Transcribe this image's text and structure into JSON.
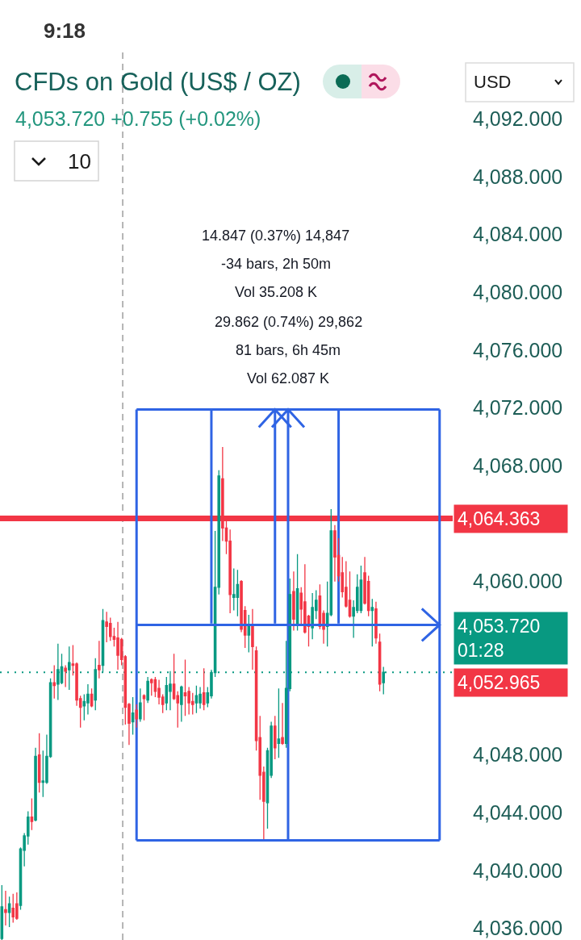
{
  "chart_data": {
    "type": "candlestick",
    "title": "CFDs on Gold (US$ / OZ)",
    "subtitle": "4,053.720 +0.755 (+0.02%)",
    "categories": [
      null,
      null,
      null,
      null,
      null,
      null,
      null,
      null,
      null,
      null,
      null,
      null,
      null,
      null,
      null,
      null,
      null,
      null,
      null,
      null,
      null,
      null,
      null,
      null,
      null,
      null,
      null,
      null,
      null,
      null,
      null,
      null,
      null,
      null,
      null,
      null,
      null,
      null,
      null,
      null,
      null,
      null,
      null,
      null,
      null,
      null,
      null,
      null,
      null,
      null,
      null,
      null,
      null,
      null,
      null,
      null,
      null,
      null,
      null,
      null,
      null,
      null,
      null,
      null,
      null,
      null,
      null,
      null,
      null,
      null,
      null,
      null,
      null,
      null,
      null,
      null,
      null,
      null,
      null,
      null,
      null,
      null,
      null,
      null,
      null,
      null,
      null,
      null,
      null,
      null,
      null,
      null,
      null,
      null,
      null,
      null,
      null,
      null,
      null,
      null,
      null,
      null,
      null,
      null,
      null,
      null,
      null,
      null,
      null,
      null,
      null,
      null,
      null,
      null,
      null,
      null,
      null,
      null,
      null,
      null,
      null
    ],
    "ohlc": [
      [
        4035.3,
        4039.0,
        4035.2,
        4037.5
      ],
      [
        4037.3,
        4038.6,
        4036.2,
        4037.1
      ],
      [
        4037.1,
        4038.2,
        4036.1,
        4037.7
      ],
      [
        4037.4,
        4038.4,
        4036.4,
        4036.8
      ],
      [
        4037.7,
        4038.5,
        4036.6,
        4036.7
      ],
      [
        4037.6,
        4041.6,
        4037.3,
        4041.5
      ],
      [
        4041.4,
        4042.6,
        4040.3,
        4042.4
      ],
      [
        4042.4,
        4044.1,
        4041.8,
        4043.7
      ],
      [
        4043.7,
        4045.0,
        4042.8,
        4043.4
      ],
      [
        4043.5,
        4048.5,
        4043.4,
        4047.9
      ],
      [
        4048.0,
        4049.5,
        4045.4,
        4046.1
      ],
      [
        4046.1,
        4048.3,
        4045.1,
        4046.2
      ],
      [
        4046.1,
        4049.4,
        4046.0,
        4047.9
      ],
      [
        4047.9,
        4053.3,
        4047.8,
        4053.0
      ],
      [
        4053.0,
        4054.2,
        4051.9,
        4052.8
      ],
      [
        4052.9,
        4055.7,
        4051.8,
        4053.9
      ],
      [
        4053.0,
        4055.0,
        4052.9,
        4054.1
      ],
      [
        4054.0,
        4054.2,
        4052.7,
        4053.8
      ],
      [
        4053.9,
        4055.5,
        4052.5,
        4054.4
      ],
      [
        4054.3,
        4055.6,
        4053.5,
        4054.2
      ],
      [
        4054.3,
        4054.4,
        4051.4,
        4051.8
      ],
      [
        4051.9,
        4052.1,
        4049.9,
        4051.3
      ],
      [
        4051.4,
        4052.2,
        4050.4,
        4051.7
      ],
      [
        4051.6,
        4052.9,
        4050.8,
        4052.2
      ],
      [
        4052.2,
        4052.6,
        4051.3,
        4051.4
      ],
      [
        4051.8,
        4054.7,
        4051.1,
        4053.9
      ],
      [
        4054.2,
        4055.9,
        4053.3,
        4053.9
      ],
      [
        4054.2,
        4058.1,
        4053.7,
        4057.3
      ],
      [
        4057.2,
        4057.9,
        4055.8,
        4056.9
      ],
      [
        4057.1,
        4057.5,
        4055.9,
        4056.2
      ],
      [
        4056.2,
        4056.8,
        4055.5,
        4056.0
      ],
      [
        4056.1,
        4057.2,
        4053.9,
        4054.9
      ],
      [
        4056.0,
        4056.1,
        4054.2,
        4054.6
      ],
      [
        4054.8,
        4054.9,
        4050.1,
        4051.3
      ],
      [
        4051.5,
        4051.6,
        4048.7,
        4050.2
      ],
      [
        4050.3,
        4052.0,
        4049.4,
        4050.9
      ],
      [
        4051.1,
        4051.5,
        4049.9,
        4050.5
      ],
      [
        4050.5,
        4052.6,
        4050.3,
        4051.6
      ],
      [
        4052.1,
        4052.2,
        4050.4,
        4051.9
      ],
      [
        4051.8,
        4053.4,
        4051.6,
        4053.1
      ],
      [
        4053.2,
        4053.3,
        4052.1,
        4053.0
      ],
      [
        4053.2,
        4053.4,
        4052.0,
        4052.4
      ],
      [
        4052.6,
        4053.2,
        4051.5,
        4052.0
      ],
      [
        4052.0,
        4052.2,
        4050.9,
        4051.5
      ],
      [
        4051.6,
        4053.4,
        4051.1,
        4052.8
      ],
      [
        4052.4,
        4053.8,
        4051.1,
        4052.9
      ],
      [
        4052.9,
        4055.0,
        4051.8,
        4051.9
      ],
      [
        4052.1,
        4052.4,
        4049.9,
        4051.6
      ],
      [
        4051.5,
        4052.8,
        4050.3,
        4052.7
      ],
      [
        4052.3,
        4054.6,
        4050.7,
        4052.1
      ],
      [
        4052.4,
        4052.7,
        4050.8,
        4051.6
      ],
      [
        4051.7,
        4052.3,
        4050.8,
        4051.5
      ],
      [
        4051.6,
        4052.8,
        4050.9,
        4052.1
      ],
      [
        4051.6,
        4052.7,
        4051.2,
        4052.2
      ],
      [
        4052.3,
        4054.0,
        4051.1,
        4051.5
      ],
      [
        4051.6,
        4052.7,
        4051.3,
        4052.3
      ],
      [
        4052.1,
        4053.9,
        4051.9,
        4053.7
      ],
      [
        4053.7,
        4063.5,
        4053.4,
        4059.6
      ],
      [
        4059.6,
        4067.7,
        4059.1,
        4067.3
      ],
      [
        4067.1,
        4069.3,
        4062.8,
        4063.7
      ],
      [
        4063.7,
        4064.3,
        4061.9,
        4062.8
      ],
      [
        4062.8,
        4063.6,
        4057.8,
        4059.1
      ],
      [
        4058.9,
        4060.9,
        4058.0,
        4059.1
      ],
      [
        4058.9,
        4060.8,
        4057.6,
        4059.8
      ],
      [
        4060.0,
        4060.1,
        4056.5,
        4056.7
      ],
      [
        4058.0,
        4058.3,
        4055.4,
        4056.3
      ],
      [
        4056.3,
        4057.7,
        4055.1,
        4057.0
      ],
      [
        4057.0,
        4058.1,
        4053.9,
        4055.5
      ],
      [
        4055.2,
        4055.5,
        4048.3,
        4049.0
      ],
      [
        4049.2,
        4050.7,
        4044.9,
        4046.6
      ],
      [
        4046.8,
        4047.2,
        4042.1,
        4044.8
      ],
      [
        4044.7,
        4048.5,
        4042.9,
        4048.3
      ],
      [
        4046.6,
        4050.3,
        4046.4,
        4050.0
      ],
      [
        4050.0,
        4050.7,
        4047.7,
        4048.5
      ],
      [
        4048.8,
        4052.6,
        4047.8,
        4049.1
      ],
      [
        4049.2,
        4051.6,
        4048.7,
        4048.8
      ],
      [
        4048.8,
        4055.9,
        4048.5,
        4052.6
      ],
      [
        4052.6,
        4060.2,
        4052.4,
        4059.1
      ],
      [
        4059.3,
        4060.7,
        4056.6,
        4057.4
      ],
      [
        4057.0,
        4061.9,
        4056.6,
        4059.5
      ],
      [
        4059.2,
        4059.6,
        4057.0,
        4058.1
      ],
      [
        4058.6,
        4061.2,
        4056.4,
        4056.5
      ],
      [
        4057.6,
        4057.7,
        4055.5,
        4056.9
      ],
      [
        4056.8,
        4059.2,
        4056.0,
        4058.2
      ],
      [
        4058.0,
        4059.4,
        4057.4,
        4058.7
      ],
      [
        4059.0,
        4059.8,
        4056.7,
        4056.9
      ],
      [
        4057.8,
        4058.0,
        4055.7,
        4056.7
      ],
      [
        4056.9,
        4060.0,
        4055.5,
        4057.8
      ],
      [
        4057.7,
        4065.0,
        4057.6,
        4063.5
      ],
      [
        4063.5,
        4063.9,
        4060.0,
        4061.7
      ],
      [
        4061.8,
        4063.0,
        4060.0,
        4060.4
      ],
      [
        4060.6,
        4061.7,
        4058.9,
        4059.3
      ],
      [
        4059.6,
        4061.4,
        4058.2,
        4058.3
      ],
      [
        4058.7,
        4060.7,
        4057.5,
        4057.6
      ],
      [
        4057.6,
        4058.7,
        4056.1,
        4058.2
      ],
      [
        4058.0,
        4060.5,
        4057.8,
        4059.6
      ],
      [
        4058.0,
        4061.1,
        4057.8,
        4060.1
      ],
      [
        4060.6,
        4061.7,
        4058.4,
        4058.5
      ],
      [
        4060.0,
        4060.4,
        4057.6,
        4058.0
      ],
      [
        4058.0,
        4058.8,
        4055.5,
        4058.2
      ],
      [
        4058.1,
        4058.6,
        4055.7,
        4056.1
      ],
      [
        4055.8,
        4056.4,
        4052.4,
        4052.9
      ],
      [
        4053.0,
        4054.1,
        4052.2,
        4053.72
      ],
      null,
      null,
      null,
      null,
      null,
      null,
      null,
      null,
      null,
      null,
      null,
      null,
      null,
      null,
      null,
      null,
      null,
      null
    ],
    "colors": [
      "#089981",
      "#f23645",
      "#089981",
      "#f23645",
      "#f23645",
      "#089981",
      "#089981",
      "#089981",
      "#f23645",
      "#089981",
      "#f23645",
      "#089981",
      "#089981",
      "#089981",
      "#f23645",
      "#089981",
      "#089981",
      "#f23645",
      "#089981",
      "#f23645",
      "#f23645",
      "#f23645",
      "#089981",
      "#089981",
      "#f23645",
      "#089981",
      "#f23645",
      "#089981",
      "#f23645",
      "#f23645",
      "#f23645",
      "#f23645",
      "#f23645",
      "#f23645",
      "#f23645",
      "#089981",
      "#f23645",
      "#089981",
      "#f23645",
      "#089981",
      "#f23645",
      "#f23645",
      "#f23645",
      "#f23645",
      "#089981",
      "#089981",
      "#f23645",
      "#f23645",
      "#089981",
      "#f23645",
      "#f23645",
      "#f23645",
      "#089981",
      "#089981",
      "#f23645",
      "#089981",
      "#089981",
      "#089981",
      "#089981",
      "#f23645",
      "#f23645",
      "#f23645",
      "#089981",
      "#089981",
      "#f23645",
      "#f23645",
      "#089981",
      "#f23645",
      "#f23645",
      "#f23645",
      "#f23645",
      "#089981",
      "#089981",
      "#f23645",
      "#089981",
      "#f23645",
      "#089981",
      "#089981",
      "#f23645",
      "#089981",
      "#f23645",
      "#f23645",
      "#f23645",
      "#089981",
      "#089981",
      "#f23645",
      "#f23645",
      "#089981",
      "#089981",
      "#f23645",
      "#f23645",
      "#f23645",
      "#f23645",
      "#f23645",
      "#089981",
      "#089981",
      "#089981",
      "#f23645",
      "#f23645",
      "#089981",
      "#f23645",
      "#f23645",
      "#089981",
      null,
      null,
      null,
      null,
      null,
      null,
      null,
      null,
      null,
      null,
      null,
      null,
      null,
      null,
      null,
      null,
      null,
      null
    ],
    "ylim": [
      4035.2,
      4096.6
    ],
    "yticks": [
      {
        "value": 4036,
        "label": "4,036.000"
      },
      {
        "value": 4040,
        "label": "4,040.000"
      },
      {
        "value": 4044,
        "label": "4,044.000"
      },
      {
        "value": 4048,
        "label": "4,048.000"
      },
      {
        "value": 4060,
        "label": "4,060.000"
      },
      {
        "value": 4068,
        "label": "4,068.000"
      },
      {
        "value": 4072,
        "label": "4,072.000"
      },
      {
        "value": 4076,
        "label": "4,076.000"
      },
      {
        "value": 4080,
        "label": "4,080.000"
      },
      {
        "value": 4084,
        "label": "4,084.000"
      },
      {
        "value": 4088,
        "label": "4,088.000"
      },
      {
        "value": 4092,
        "label": "4,092.000"
      }
    ],
    "tick_labels": "y",
    "series": [
      {
        "type": "line",
        "name": "29.862 (0.74%) 29,862\n81 bars, 6h 45m\nVol 62.087 K",
        "color": "#2f64e4",
        "values": [
          null,
          null,
          null,
          null,
          null,
          null,
          null,
          null,
          null,
          null,
          null,
          null,
          null,
          null,
          null,
          null,
          null,
          null,
          null,
          null,
          null,
          null,
          null,
          null,
          null,
          null,
          null,
          null,
          null,
          null,
          null,
          null,
          null,
          null,
          null,
          null,
          4071.9,
          4071.9,
          4071.9,
          4071.9,
          4071.9,
          4071.9,
          4071.9,
          4071.9,
          4071.9,
          4071.9,
          4071.9,
          4071.9,
          4071.9,
          4071.9,
          4071.9,
          4071.9,
          4071.9,
          4071.9,
          4071.9,
          4071.9,
          4071.9,
          4071.9,
          4071.9,
          4071.9,
          4071.9,
          4071.9,
          4071.9,
          4071.9,
          4071.9,
          4071.9,
          4071.9,
          4071.9,
          4071.9,
          4071.9,
          4071.9,
          4071.9,
          4071.9,
          4071.9,
          4071.9,
          4071.9,
          4071.9,
          4071.9,
          4071.9,
          4071.9,
          4071.9,
          4071.9,
          4071.9,
          4071.9,
          4071.9,
          4071.9,
          4071.9,
          4071.9,
          4071.9,
          4071.9,
          4071.9,
          4071.9,
          4071.9,
          4071.9,
          4071.9,
          4071.9,
          4071.9,
          4071.9,
          4071.9,
          4071.9,
          4071.9,
          4071.9,
          4071.9,
          4071.9,
          4071.9,
          4071.9,
          4071.9,
          4071.9,
          4071.9,
          4071.9,
          4071.9,
          4071.9,
          4071.9,
          4071.9,
          4071.9,
          4071.9,
          4071.9,
          4071.9,
          null,
          null,
          null
        ]
      },
      {
        "type": "line",
        "color": "#2f64e4",
        "values": [
          null,
          null,
          null,
          null,
          null,
          null,
          null,
          null,
          null,
          null,
          null,
          null,
          null,
          null,
          null,
          null,
          null,
          null,
          null,
          null,
          null,
          null,
          null,
          null,
          null,
          null,
          null,
          null,
          null,
          null,
          null,
          null,
          null,
          null,
          null,
          null,
          4057.0,
          4057.0,
          4057.0,
          4057.0,
          4057.0,
          4057.0,
          4057.0,
          4057.0,
          4057.0,
          4057.0,
          4057.0,
          4057.0,
          4057.0,
          4057.0,
          4057.0,
          4057.0,
          4057.0,
          4057.0,
          4057.0,
          4057.0,
          4057.0,
          4057.0,
          4057.0,
          4057.0,
          4057.0,
          4057.0,
          4057.0,
          4057.0,
          4057.0,
          4057.0,
          4057.0,
          4057.0,
          4057.0,
          4057.0,
          4057.0,
          4057.0,
          4057.0,
          4057.0,
          4057.0,
          4057.0,
          4057.0,
          4057.0,
          4057.0,
          4057.0,
          4057.0,
          4057.0,
          4057.0,
          4057.0,
          4057.0,
          4057.0,
          4057.0,
          4057.0,
          4057.0,
          4057.0,
          4057.0,
          4057.0,
          4057.0,
          4057.0,
          4057.0,
          4057.0,
          4057.0,
          4057.0,
          4057.0,
          4057.0,
          4057.0,
          4057.0,
          4057.0,
          4057.0,
          4057.0,
          4057.0,
          4057.0,
          4057.0,
          4057.0,
          4057.0,
          4057.0,
          4057.0,
          4057.0,
          4057.0,
          4057.0,
          4057.0,
          4057.0,
          4057.0,
          null,
          null,
          null
        ]
      },
      {
        "type": "line",
        "color": "#2f64e4",
        "values": [
          null,
          null,
          null,
          null,
          null,
          null,
          null,
          null,
          null,
          null,
          null,
          null,
          null,
          null,
          null,
          null,
          null,
          null,
          null,
          null,
          null,
          null,
          null,
          null,
          null,
          null,
          null,
          null,
          null,
          null,
          null,
          null,
          null,
          null,
          null,
          null,
          4042.1,
          4042.1,
          4042.1,
          4042.1,
          4042.1,
          4042.1,
          4042.1,
          4042.1,
          4042.1,
          4042.1,
          4042.1,
          4042.1,
          4042.1,
          4042.1,
          4042.1,
          4042.1,
          4042.1,
          4042.1,
          4042.1,
          4042.1,
          4042.1,
          4042.1,
          4042.1,
          4042.1,
          4042.1,
          4042.1,
          4042.1,
          4042.1,
          4042.1,
          4042.1,
          4042.1,
          4042.1,
          4042.1,
          4042.1,
          4042.1,
          4042.1,
          4042.1,
          4042.1,
          4042.1,
          4042.1,
          4042.1,
          4042.1,
          4042.1,
          4042.1,
          4042.1,
          4042.1,
          4042.1,
          4042.1,
          4042.1,
          4042.1,
          4042.1,
          4042.1,
          4042.1,
          4042.1,
          4042.1,
          4042.1,
          4042.1,
          4042.1,
          4042.1,
          4042.1,
          4042.1,
          4042.1,
          4042.1,
          4042.1,
          4042.1,
          4042.1,
          4042.1,
          4042.1,
          4042.1,
          4042.1,
          4042.1,
          4042.1,
          4042.1,
          4042.1,
          4042.1,
          4042.1,
          4042.1,
          4042.1,
          4042.1,
          4042.1,
          4042.1,
          4042.1,
          null,
          null,
          null
        ]
      }
    ],
    "ref_lines": [
      {
        "axis": "y",
        "value": 4053.72,
        "label": "4,053.720\n01:28",
        "color": "#089981",
        "line_style": "dotted"
      },
      {
        "axis": "y",
        "value": 4064.363,
        "label": "4,064.363",
        "color": "#f23645",
        "line_style": "solid"
      }
    ],
    "annotations": [
      "9:18",
      "10",
      "USD",
      "4,052.965",
      "14.847 (0.37%) 14,847\n-34 bars, 2h 50m\nVol 35.208 K"
    ]
  }
}
